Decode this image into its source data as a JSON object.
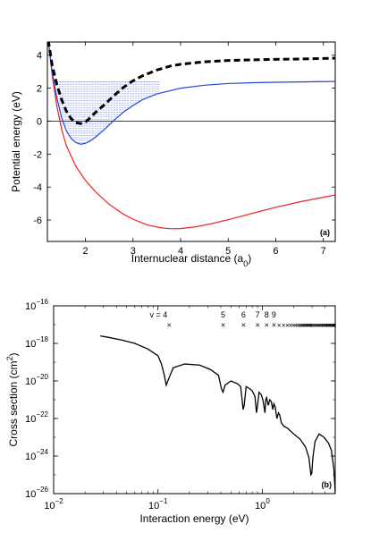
{
  "figure": {
    "panels": [
      "(a)",
      "(b)"
    ]
  },
  "chart_data": [
    {
      "type": "line",
      "panel_label": "(a)",
      "xlabel": "Internuclear distance (a",
      "xlabel_sub": "0",
      "xlabel_end": ")",
      "ylabel": "Potential energy (eV)",
      "xlim": [
        1.2,
        7.25
      ],
      "ylim": [
        -7.3,
        4.8
      ],
      "xticks": [
        "2",
        "3",
        "4",
        "5",
        "6",
        "7"
      ],
      "xtick_values": [
        2,
        3,
        4,
        5,
        6,
        7
      ],
      "yticks": [
        "4",
        "2",
        "0",
        "-2",
        "-4",
        "-6"
      ],
      "ytick_values": [
        4,
        2,
        0,
        -2,
        -4,
        -6
      ],
      "zero_line": true,
      "series": [
        {
          "color": "#000000",
          "style": "dashed",
          "x": [
            1.22,
            1.3,
            1.4,
            1.5,
            1.6,
            1.7,
            1.8,
            1.9,
            2.0,
            2.1,
            2.2,
            2.4,
            2.6,
            2.8,
            3.0,
            3.2,
            3.5,
            3.8,
            4.0,
            4.5,
            5.0,
            5.5,
            6.0,
            6.5,
            7.0,
            7.25
          ],
          "values": [
            4.9,
            3.4,
            2.2,
            1.3,
            0.6,
            0.15,
            -0.1,
            -0.15,
            -0.05,
            0.2,
            0.5,
            1.0,
            1.55,
            2.05,
            2.45,
            2.75,
            3.1,
            3.35,
            3.45,
            3.6,
            3.68,
            3.72,
            3.75,
            3.77,
            3.8,
            3.82
          ]
        },
        {
          "color": "#2244dd",
          "style": "solid",
          "x": [
            1.22,
            1.3,
            1.4,
            1.5,
            1.6,
            1.7,
            1.8,
            1.9,
            2.0,
            2.1,
            2.2,
            2.4,
            2.6,
            2.8,
            3.0,
            3.2,
            3.5,
            4.0,
            4.5,
            5.0,
            5.5,
            6.0,
            6.5,
            7.0,
            7.25
          ],
          "values": [
            4.9,
            3.0,
            1.4,
            0.2,
            -0.6,
            -1.05,
            -1.3,
            -1.4,
            -1.35,
            -1.2,
            -1.0,
            -0.5,
            0.05,
            0.55,
            0.95,
            1.3,
            1.65,
            2.0,
            2.18,
            2.28,
            2.33,
            2.36,
            2.38,
            2.4,
            2.41
          ]
        },
        {
          "color": "#ee2222",
          "style": "solid",
          "x": [
            1.22,
            1.3,
            1.4,
            1.5,
            1.6,
            1.8,
            2.0,
            2.2,
            2.5,
            2.8,
            3.0,
            3.3,
            3.6,
            3.8,
            4.0,
            4.3,
            4.6,
            5.0,
            5.5,
            6.0,
            6.5,
            7.0,
            7.25
          ],
          "values": [
            4.9,
            2.8,
            0.9,
            -0.5,
            -1.5,
            -2.75,
            -3.6,
            -4.25,
            -5.05,
            -5.65,
            -5.95,
            -6.3,
            -6.48,
            -6.53,
            -6.52,
            -6.42,
            -6.25,
            -5.98,
            -5.6,
            -5.23,
            -4.9,
            -4.62,
            -4.48
          ]
        }
      ],
      "shaded_region": {
        "color": "#2244dd",
        "description": "vibrational levels",
        "top_energy": 2.4
      }
    },
    {
      "type": "line",
      "panel_label": "(b)",
      "xlabel": "Interaction energy (eV)",
      "ylabel": "Cross section (cm",
      "ylabel_sup": "2",
      "ylabel_end": ")",
      "xscale": "log",
      "yscale": "log",
      "xlim": [
        0.01,
        5.0
      ],
      "ylim": [
        1e-26,
        1e-16
      ],
      "xticks": [
        {
          "base": "10",
          "exp": "−2",
          "value": 0.01
        },
        {
          "base": "10",
          "exp": "−1",
          "value": 0.1
        },
        {
          "base": "10",
          "exp": "0",
          "value": 1
        }
      ],
      "yticks": [
        {
          "base": "10",
          "exp": "−16",
          "value": 1e-16
        },
        {
          "base": "10",
          "exp": "−18",
          "value": 1e-18
        },
        {
          "base": "10",
          "exp": "−20",
          "value": 1e-20
        },
        {
          "base": "10",
          "exp": "−22",
          "value": 1e-22
        },
        {
          "base": "10",
          "exp": "−24",
          "value": 1e-24
        },
        {
          "base": "10",
          "exp": "−26",
          "value": 1e-26
        }
      ],
      "vibrational_thresholds": {
        "marker": "×",
        "y_value": 1e-17,
        "labeled": [
          {
            "label": "v = 4",
            "x": 0.128
          },
          {
            "label": "5",
            "x": 0.42
          },
          {
            "label": "6",
            "x": 0.66
          },
          {
            "label": "7",
            "x": 0.9
          },
          {
            "label": "8",
            "x": 1.1
          },
          {
            "label": "9",
            "x": 1.29
          }
        ],
        "unlabeled_x": [
          1.45,
          1.6,
          1.74,
          1.86,
          1.97,
          2.07,
          2.16,
          2.25,
          2.33,
          2.41,
          2.48,
          2.55,
          2.62,
          2.69,
          2.76,
          2.83,
          2.9,
          2.97,
          3.05,
          3.15,
          3.25,
          3.35,
          3.45,
          3.55,
          3.65,
          3.75,
          3.85,
          3.95,
          4.05,
          4.15,
          4.25,
          4.35,
          4.45,
          4.55,
          4.65,
          4.75,
          4.85,
          4.95
        ]
      },
      "series": [
        {
          "color": "#000000",
          "style": "solid",
          "x": [
            0.028,
            0.035,
            0.045,
            0.06,
            0.08,
            0.1,
            0.108,
            0.115,
            0.12,
            0.128,
            0.14,
            0.18,
            0.25,
            0.32,
            0.38,
            0.405,
            0.42,
            0.44,
            0.5,
            0.58,
            0.62,
            0.655,
            0.67,
            0.7,
            0.75,
            0.8,
            0.85,
            0.88,
            0.9,
            0.93,
            0.98,
            1.02,
            1.06,
            1.08,
            1.1,
            1.14,
            1.18,
            1.22,
            1.26,
            1.29,
            1.33,
            1.38,
            1.43,
            1.47,
            1.52,
            1.6,
            1.75,
            2.0,
            2.3,
            2.6,
            2.8,
            2.92,
            2.98,
            3.05,
            3.2,
            3.5,
            3.9,
            4.3,
            4.6,
            4.85,
            4.95,
            5.0
          ],
          "values": [
            2.5e-18,
            2e-18,
            1.5e-18,
            1e-18,
            5e-19,
            2.2e-19,
            8e-20,
            2e-20,
            6e-21,
            1.5e-20,
            5e-20,
            8e-20,
            7e-20,
            4e-20,
            2e-20,
            4e-21,
            2.5e-21,
            6e-21,
            1e-20,
            7e-21,
            5e-21,
            3e-22,
            5e-22,
            5e-21,
            4e-21,
            3e-21,
            1.5e-21,
            2e-22,
            5e-22,
            2.5e-21,
            1.8e-21,
            8e-22,
            2e-22,
            1e-21,
            1.3e-21,
            5e-22,
            1e-21,
            8e-22,
            3e-22,
            6e-22,
            4e-22,
            1e-22,
            2e-22,
            1.5e-22,
            6e-23,
            4e-23,
            3e-23,
            1.5e-23,
            8e-24,
            3e-24,
            8e-25,
            1e-25,
            1.2e-25,
            8e-25,
            6e-24,
            1.5e-23,
            1e-23,
            5e-24,
            2e-24,
            2e-25,
            3e-26,
            1e-26
          ]
        }
      ]
    }
  ]
}
